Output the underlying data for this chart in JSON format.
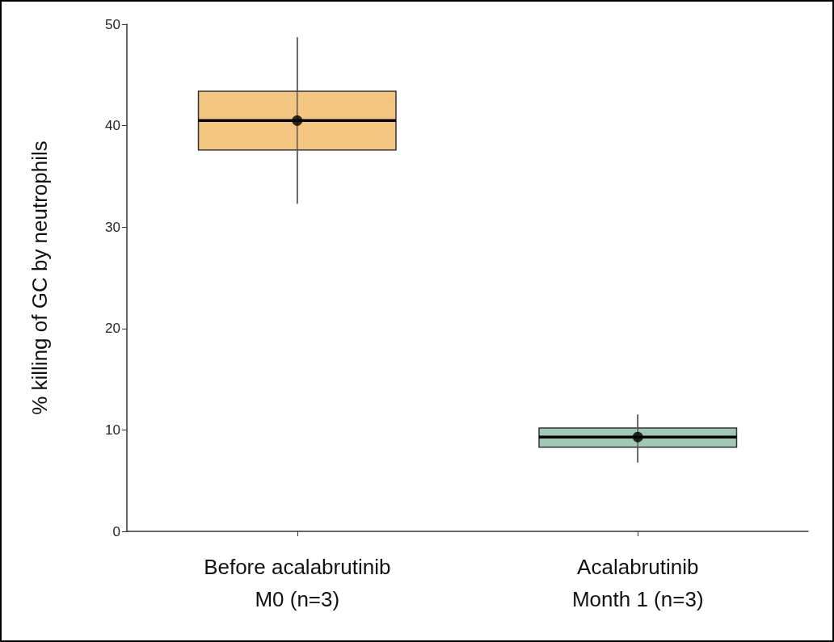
{
  "chart_data": {
    "type": "box",
    "ylabel": "% killing of GC by neutrophils",
    "categories": [
      "Before acalabrutinib\nM0 (n=3)",
      "Acalabrutinib\nMonth 1 (n=3)"
    ],
    "boxes": [
      {
        "low": 32.3,
        "q1": 37.6,
        "median": 40.5,
        "q3": 43.4,
        "high": 48.7,
        "mean": 40.5
      },
      {
        "low": 6.8,
        "q1": 8.3,
        "median": 9.3,
        "q3": 10.2,
        "high": 11.5,
        "mean": 9.3
      }
    ],
    "colors": [
      "#f5c680",
      "#9fc9b2"
    ],
    "ylim": [
      0,
      50
    ],
    "yticks": [
      0,
      10,
      20,
      30,
      40,
      50
    ],
    "grid": false
  }
}
